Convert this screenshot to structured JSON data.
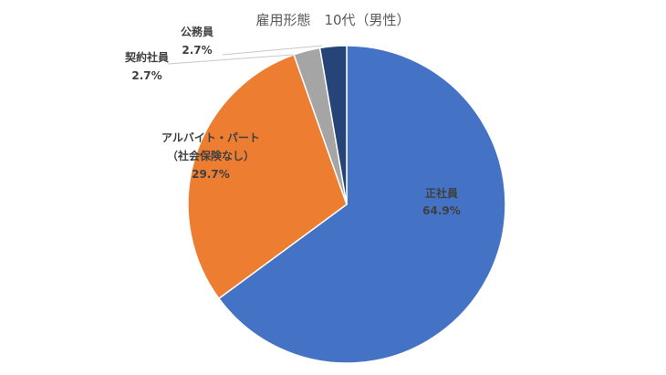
{
  "chart_data": {
    "type": "pie",
    "title": "雇用形態　10代（男性）",
    "series": [
      {
        "values": [
          64.9,
          29.7,
          2.7,
          2.7
        ]
      }
    ],
    "slices": [
      {
        "label": "正社員",
        "value": 64.9,
        "value_label": "64.9%",
        "color": "#4472C4"
      },
      {
        "label_lines": [
          "アルバイト・パート",
          "（社会保険なし）"
        ],
        "value": 29.7,
        "value_label": "29.7%",
        "color": "#ED7D31"
      },
      {
        "label": "契約社員",
        "value": 2.7,
        "value_label": "2.7%",
        "color": "#A5A5A5"
      },
      {
        "label": "公務員",
        "value": 2.7,
        "value_label": "2.7%",
        "color": "#264478"
      }
    ],
    "start_angle": "12 o'clock",
    "direction": "clockwise",
    "legend": "none"
  }
}
